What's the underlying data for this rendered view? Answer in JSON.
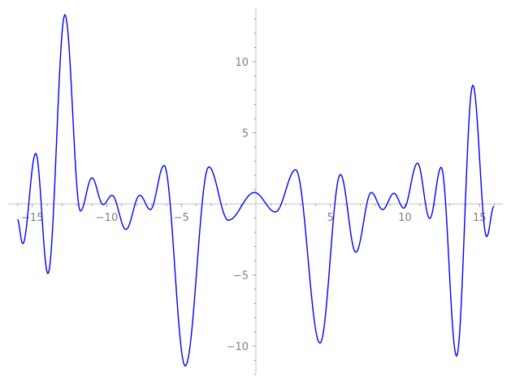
{
  "chart_data": {
    "type": "line",
    "title": "",
    "xlabel": "",
    "ylabel": "",
    "xlim": [
      -16,
      16
    ],
    "ylim": [
      -12,
      14
    ],
    "grid": false,
    "x_ticks": [
      -15,
      -10,
      -5,
      5,
      10,
      15
    ],
    "x_tick_labels": [
      "−15",
      "−10",
      "−5",
      "5",
      "10",
      "15"
    ],
    "y_ticks": [
      -10,
      -5,
      5,
      10
    ],
    "y_tick_labels": [
      "−10",
      "−5",
      "5",
      "10"
    ],
    "line_color": "#0000ff",
    "axis_color": "#cccccc",
    "series": [
      {
        "points": [
          [
            -16.0,
            -1.1
          ],
          [
            -15.64,
            -2.8
          ],
          [
            -14.77,
            3.54
          ],
          [
            -13.95,
            -4.9
          ],
          [
            -12.81,
            13.3
          ],
          [
            -11.77,
            -0.5
          ],
          [
            -11.0,
            1.83
          ],
          [
            -10.25,
            -0.05
          ],
          [
            -9.65,
            0.6
          ],
          [
            -8.72,
            -1.8
          ],
          [
            -7.79,
            0.6
          ],
          [
            -7.08,
            -0.4
          ],
          [
            -6.16,
            2.7
          ],
          [
            -4.74,
            -11.4
          ],
          [
            -3.16,
            2.6
          ],
          [
            -1.85,
            -1.15
          ],
          [
            -0.1,
            0.8
          ],
          [
            1.31,
            -0.57
          ],
          [
            2.67,
            2.4
          ],
          [
            4.3,
            -9.8
          ],
          [
            5.67,
            2.06
          ],
          [
            6.7,
            -3.4
          ],
          [
            7.74,
            0.8
          ],
          [
            8.5,
            -0.4
          ],
          [
            9.26,
            0.74
          ],
          [
            9.92,
            -0.3
          ],
          [
            10.84,
            2.86
          ],
          [
            11.66,
            -1.03
          ],
          [
            12.43,
            2.57
          ],
          [
            13.46,
            -10.7
          ],
          [
            14.55,
            8.34
          ],
          [
            15.48,
            -2.3
          ],
          [
            15.97,
            -0.17
          ]
        ]
      }
    ]
  }
}
